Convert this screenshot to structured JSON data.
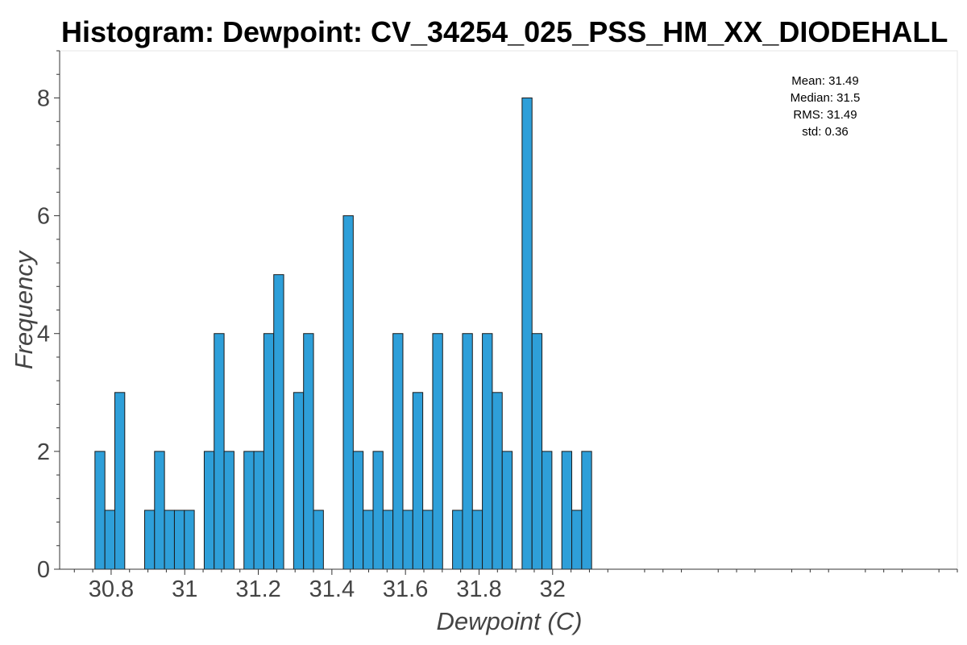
{
  "chart_data": {
    "type": "histogram",
    "title": "Histogram: Dewpoint: CV_34254_025_PSS_HM_XX_DIODEHALL",
    "xlabel": "Dewpoint (C)",
    "ylabel": "Frequency",
    "xlim": [
      30.66,
      33.1
    ],
    "ylim": [
      0,
      8.8
    ],
    "x_ticks": [
      30.8,
      31.0,
      31.2,
      31.4,
      31.6,
      31.8,
      32.0
    ],
    "x_tick_labels": [
      "30.8",
      "31",
      "31.2",
      "31.4",
      "31.6",
      "31.8",
      "32"
    ],
    "y_ticks": [
      0,
      2,
      4,
      6,
      8
    ],
    "y_tick_labels": [
      "0",
      "2",
      "4",
      "6",
      "8"
    ],
    "bin_width": 0.027,
    "bins": [
      {
        "x0": 30.756,
        "count": 2
      },
      {
        "x0": 30.783,
        "count": 1
      },
      {
        "x0": 30.81,
        "count": 3
      },
      {
        "x0": 30.891,
        "count": 1
      },
      {
        "x0": 30.918,
        "count": 2
      },
      {
        "x0": 30.945,
        "count": 1
      },
      {
        "x0": 30.972,
        "count": 1
      },
      {
        "x0": 30.999,
        "count": 1
      },
      {
        "x0": 31.053,
        "count": 2
      },
      {
        "x0": 31.08,
        "count": 4
      },
      {
        "x0": 31.107,
        "count": 2
      },
      {
        "x0": 31.161,
        "count": 2
      },
      {
        "x0": 31.188,
        "count": 2
      },
      {
        "x0": 31.215,
        "count": 4
      },
      {
        "x0": 31.242,
        "count": 5
      },
      {
        "x0": 31.296,
        "count": 3
      },
      {
        "x0": 31.323,
        "count": 4
      },
      {
        "x0": 31.35,
        "count": 1
      },
      {
        "x0": 31.431,
        "count": 6
      },
      {
        "x0": 31.458,
        "count": 2
      },
      {
        "x0": 31.485,
        "count": 1
      },
      {
        "x0": 31.512,
        "count": 2
      },
      {
        "x0": 31.539,
        "count": 1
      },
      {
        "x0": 31.566,
        "count": 4
      },
      {
        "x0": 31.593,
        "count": 1
      },
      {
        "x0": 31.62,
        "count": 3
      },
      {
        "x0": 31.647,
        "count": 1
      },
      {
        "x0": 31.674,
        "count": 4
      },
      {
        "x0": 31.728,
        "count": 1
      },
      {
        "x0": 31.755,
        "count": 4
      },
      {
        "x0": 31.782,
        "count": 1
      },
      {
        "x0": 31.809,
        "count": 4
      },
      {
        "x0": 31.836,
        "count": 3
      },
      {
        "x0": 31.863,
        "count": 2
      },
      {
        "x0": 31.917,
        "count": 8
      },
      {
        "x0": 31.944,
        "count": 4
      },
      {
        "x0": 31.971,
        "count": 2
      },
      {
        "x0": 32.025,
        "count": 2
      },
      {
        "x0": 32.052,
        "count": 1
      },
      {
        "x0": 32.079,
        "count": 2
      }
    ],
    "bar_color": "#2e9fd9",
    "bar_edge_color": "#1a1a1a",
    "stats": {
      "mean": "Mean: 31.49",
      "median": "Median: 31.5",
      "rms": "RMS: 31.49",
      "std": "std: 0.36"
    },
    "stats_position": "top-right"
  }
}
